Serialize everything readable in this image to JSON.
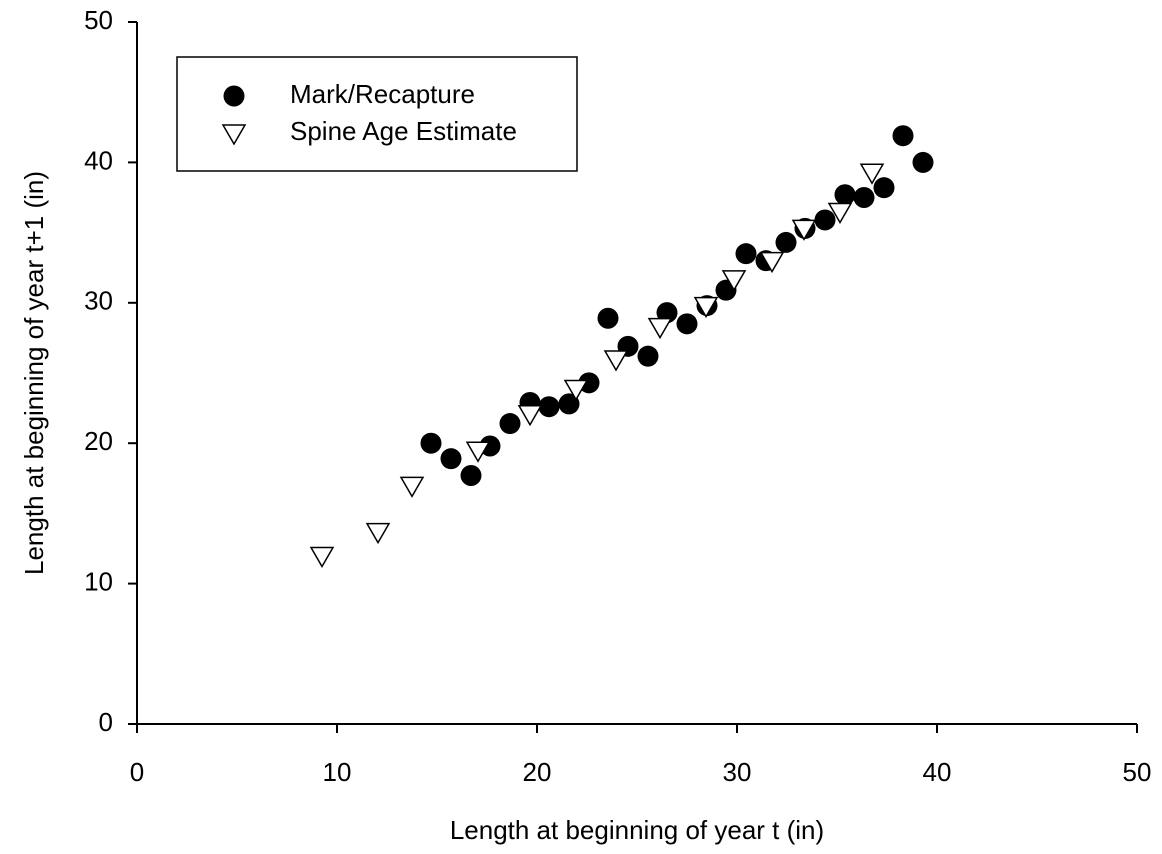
{
  "chart_data": {
    "type": "scatter",
    "xlabel": "Length at beginning of year t (in)",
    "ylabel": "Length at beginning of year t+1 (in)",
    "xlim": [
      0,
      50
    ],
    "xticks": [
      0,
      10,
      20,
      30,
      40,
      50
    ],
    "ylim": [
      0,
      50
    ],
    "yticks": [
      0,
      10,
      20,
      30,
      40,
      50
    ],
    "legend": "upper left",
    "series": [
      {
        "name": "Mark/Recapture",
        "marker": "circle",
        "color": "#000000",
        "x": [
          14.7,
          15.7,
          16.7,
          17.65,
          18.65,
          19.65,
          20.6,
          21.6,
          22.6,
          23.55,
          24.55,
          25.55,
          26.5,
          27.5,
          28.5,
          29.45,
          30.45,
          31.45,
          32.45,
          33.4,
          34.4,
          35.4,
          36.35,
          37.35,
          38.3,
          39.3
        ],
        "values": [
          20.0,
          18.9,
          17.7,
          19.8,
          21.4,
          22.9,
          22.6,
          22.8,
          24.3,
          28.9,
          26.9,
          26.2,
          29.3,
          28.5,
          29.8,
          30.9,
          33.5,
          33.0,
          34.3,
          35.3,
          35.9,
          37.7,
          37.5,
          38.2,
          41.9,
          40.0
        ]
      },
      {
        "name": "Spine Age Estimate",
        "marker": "triangle-down",
        "color": "#000000",
        "x": [
          9.25,
          12.05,
          13.75,
          17.05,
          19.65,
          21.95,
          23.95,
          26.15,
          28.45,
          29.85,
          31.75,
          33.35,
          35.15,
          36.75
        ],
        "values": [
          12.0,
          13.7,
          17.0,
          19.5,
          22.1,
          23.9,
          26.0,
          28.3,
          29.8,
          31.7,
          33.0,
          35.3,
          36.5,
          39.3
        ]
      }
    ]
  }
}
